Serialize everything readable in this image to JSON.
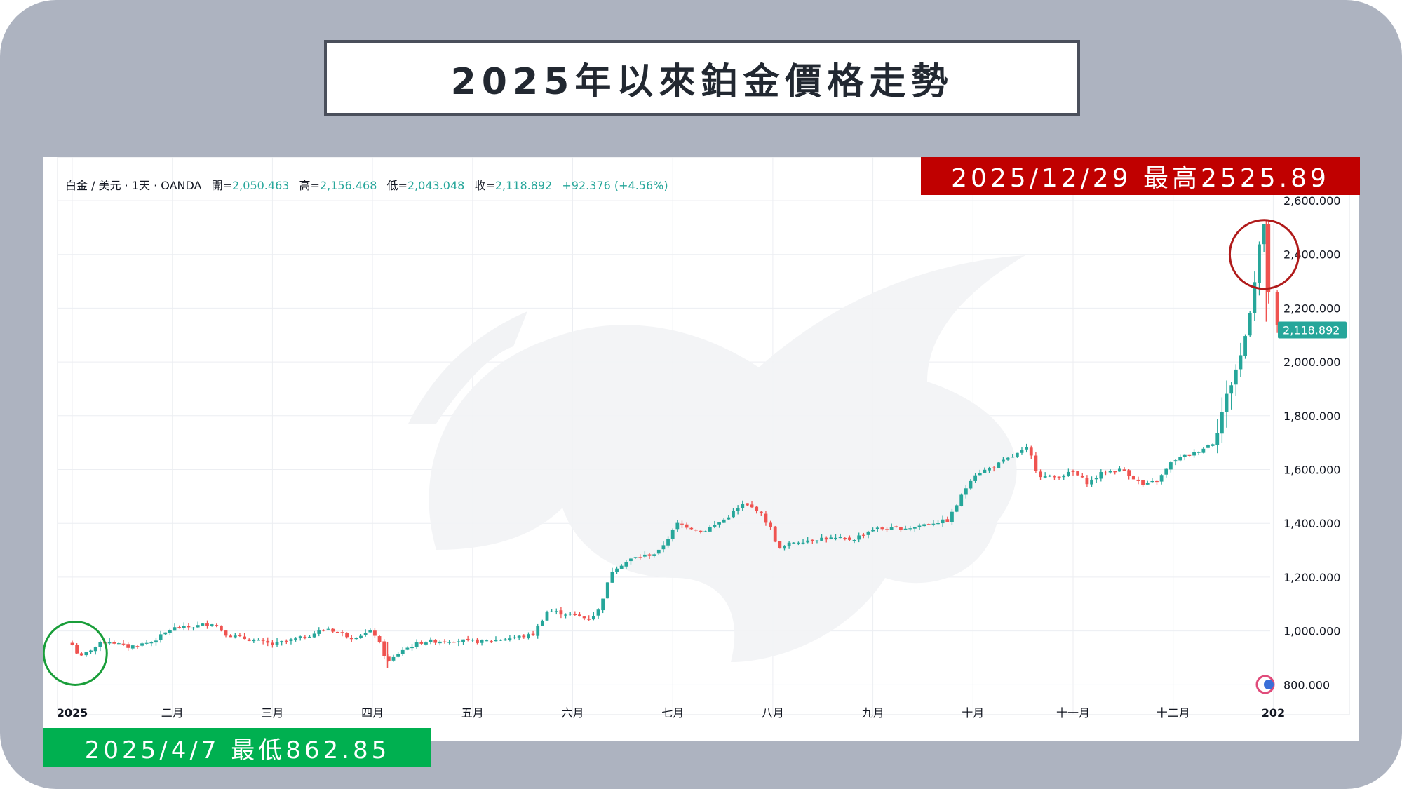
{
  "title": "2025年以來鉑金價格走勢",
  "high_banner": "2025/12/29 最高2525.89",
  "low_banner": "2025/4/7 最低862.85",
  "legend": {
    "symbol": "白金 / 美元 · 1天 · OANDA",
    "open_label": "開=",
    "open": "2,050.463",
    "high_label": "高=",
    "high": "2,156.468",
    "low_label": "低=",
    "low": "2,043.048",
    "close_label": "收=",
    "close": "2,118.892",
    "change": "+92.376 (+4.56%)"
  },
  "last_price_tag": "2,118.892",
  "colors": {
    "frame": "#adb3c0",
    "up": "#26a69a",
    "down": "#ef5350",
    "high_banner": "#c00000",
    "low_banner": "#00b050",
    "high_circle": "#b01a1a",
    "low_circle": "#1a9e3a"
  },
  "chart_data": {
    "type": "candlestick",
    "ylim": [
      720,
      2600
    ],
    "y_ticks": [
      {
        "value": 800,
        "label": "800.000"
      },
      {
        "value": 1000,
        "label": "1,000.000"
      },
      {
        "value": 1200,
        "label": "1,200.000"
      },
      {
        "value": 1400,
        "label": "1,400.000"
      },
      {
        "value": 1600,
        "label": "1,600.000"
      },
      {
        "value": 1800,
        "label": "1,800.000"
      },
      {
        "value": 2000,
        "label": "2,000.000"
      },
      {
        "value": 2200,
        "label": "2,200.000"
      },
      {
        "value": 2400,
        "label": "2,400.000"
      },
      {
        "value": 2600,
        "label": "2,600.000"
      }
    ],
    "x_ticks": [
      {
        "month": 0,
        "label": "2025",
        "bold": true
      },
      {
        "month": 1,
        "label": "二月"
      },
      {
        "month": 2,
        "label": "三月"
      },
      {
        "month": 3,
        "label": "四月"
      },
      {
        "month": 4,
        "label": "五月"
      },
      {
        "month": 5,
        "label": "六月"
      },
      {
        "month": 6,
        "label": "七月"
      },
      {
        "month": 7,
        "label": "八月"
      },
      {
        "month": 8,
        "label": "九月"
      },
      {
        "month": 9,
        "label": "十月"
      },
      {
        "month": 10,
        "label": "十一月"
      },
      {
        "month": 11,
        "label": "十二月"
      },
      {
        "month": 12,
        "label": "202",
        "bold": true
      }
    ],
    "last_close": 2118.892,
    "close_path": [
      [
        0.0,
        948
      ],
      [
        0.08,
        900
      ],
      [
        0.2,
        935
      ],
      [
        0.35,
        965
      ],
      [
        0.55,
        940
      ],
      [
        0.8,
        960
      ],
      [
        1.0,
        1010
      ],
      [
        1.2,
        1015
      ],
      [
        1.4,
        1030
      ],
      [
        1.55,
        985
      ],
      [
        1.75,
        970
      ],
      [
        2.0,
        950
      ],
      [
        2.3,
        975
      ],
      [
        2.55,
        1010
      ],
      [
        2.8,
        975
      ],
      [
        3.0,
        1000
      ],
      [
        3.05,
        970
      ],
      [
        3.15,
        880
      ],
      [
        3.3,
        930
      ],
      [
        3.5,
        960
      ],
      [
        3.8,
        965
      ],
      [
        4.1,
        960
      ],
      [
        4.4,
        975
      ],
      [
        4.6,
        985
      ],
      [
        4.75,
        1075
      ],
      [
        5.0,
        1060
      ],
      [
        5.15,
        1045
      ],
      [
        5.25,
        1070
      ],
      [
        5.4,
        1230
      ],
      [
        5.6,
        1270
      ],
      [
        5.85,
        1290
      ],
      [
        6.05,
        1400
      ],
      [
        6.3,
        1370
      ],
      [
        6.5,
        1410
      ],
      [
        6.7,
        1470
      ],
      [
        6.85,
        1450
      ],
      [
        7.0,
        1370
      ],
      [
        7.05,
        1300
      ],
      [
        7.2,
        1330
      ],
      [
        7.5,
        1345
      ],
      [
        7.8,
        1340
      ],
      [
        8.0,
        1380
      ],
      [
        8.2,
        1380
      ],
      [
        8.4,
        1385
      ],
      [
        8.55,
        1400
      ],
      [
        8.75,
        1410
      ],
      [
        9.0,
        1580
      ],
      [
        9.2,
        1610
      ],
      [
        9.4,
        1650
      ],
      [
        9.55,
        1680
      ],
      [
        9.65,
        1580
      ],
      [
        9.8,
        1570
      ],
      [
        10.0,
        1590
      ],
      [
        10.15,
        1550
      ],
      [
        10.3,
        1590
      ],
      [
        10.5,
        1600
      ],
      [
        10.7,
        1540
      ],
      [
        10.85,
        1560
      ],
      [
        11.0,
        1635
      ],
      [
        11.2,
        1660
      ],
      [
        11.4,
        1700
      ],
      [
        11.55,
        1890
      ],
      [
        11.7,
        2050
      ],
      [
        11.8,
        2270
      ],
      [
        11.88,
        2490
      ],
      [
        11.93,
        2500
      ],
      [
        11.96,
        2200
      ],
      [
        12.0,
        2060
      ],
      [
        12.04,
        2118.892
      ]
    ],
    "notable": {
      "high": {
        "date": "2025/12/29",
        "value": 2525.89
      },
      "low": {
        "date": "2025/4/7",
        "value": 862.85
      }
    }
  }
}
